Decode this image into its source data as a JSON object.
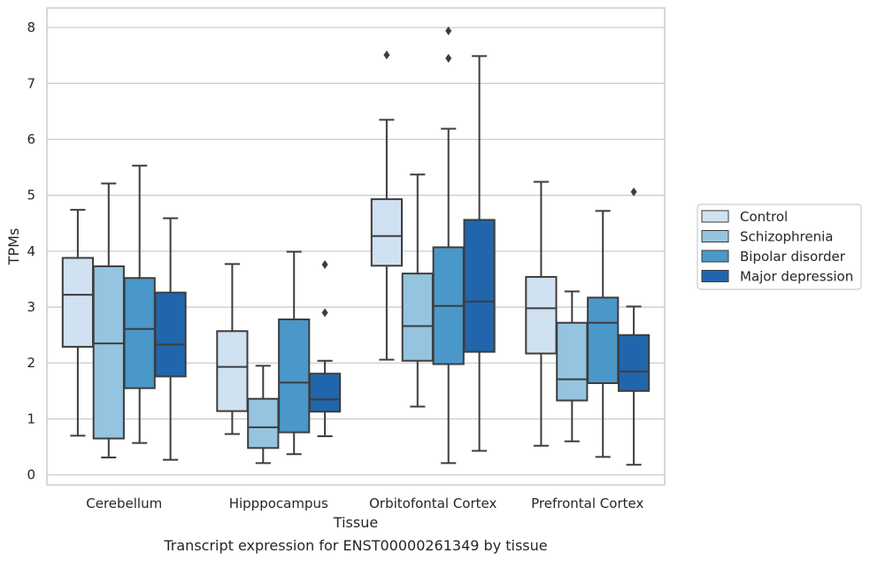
{
  "caption": "Transcript expression for ENST00000261349 by tissue",
  "chart_data": {
    "type": "boxplot",
    "xlabel": "Tissue",
    "ylabel": "TPMs",
    "ylim": [
      -0.18,
      8.35
    ],
    "yticks": [
      0,
      1,
      2,
      3,
      4,
      5,
      6,
      7,
      8
    ],
    "grid": "horizontal",
    "legend_position": "right",
    "categories": [
      "Cerebellum",
      "Hipppocampus",
      "Orbitofontal Cortex",
      "Prefrontal Cortex"
    ],
    "series": [
      {
        "name": "Control",
        "color": "#d0e1f2",
        "boxes": [
          {
            "min": 0.7,
            "q1": 2.29,
            "median": 3.22,
            "q3": 3.88,
            "max": 4.74,
            "outliers": []
          },
          {
            "min": 0.73,
            "q1": 1.14,
            "median": 1.93,
            "q3": 2.57,
            "max": 3.77,
            "outliers": []
          },
          {
            "min": 2.06,
            "q1": 3.74,
            "median": 4.27,
            "q3": 4.93,
            "max": 6.35,
            "outliers": [
              7.51
            ]
          },
          {
            "min": 0.52,
            "q1": 2.17,
            "median": 2.98,
            "q3": 3.54,
            "max": 5.24,
            "outliers": []
          }
        ]
      },
      {
        "name": "Schizophrenia",
        "color": "#94c4df",
        "boxes": [
          {
            "min": 0.31,
            "q1": 0.65,
            "median": 2.35,
            "q3": 3.73,
            "max": 5.21,
            "outliers": []
          },
          {
            "min": 0.21,
            "q1": 0.48,
            "median": 0.85,
            "q3": 1.36,
            "max": 1.95,
            "outliers": []
          },
          {
            "min": 1.22,
            "q1": 2.04,
            "median": 2.66,
            "q3": 3.6,
            "max": 5.37,
            "outliers": []
          },
          {
            "min": 0.6,
            "q1": 1.33,
            "median": 1.71,
            "q3": 2.72,
            "max": 3.28,
            "outliers": []
          }
        ]
      },
      {
        "name": "Bipolar disorder",
        "color": "#4a98c9",
        "boxes": [
          {
            "min": 0.57,
            "q1": 1.55,
            "median": 2.61,
            "q3": 3.52,
            "max": 5.53,
            "outliers": []
          },
          {
            "min": 0.37,
            "q1": 0.76,
            "median": 1.65,
            "q3": 2.78,
            "max": 3.99,
            "outliers": []
          },
          {
            "min": 0.21,
            "q1": 1.98,
            "median": 3.02,
            "q3": 4.07,
            "max": 6.19,
            "outliers": [
              7.45,
              7.94
            ]
          },
          {
            "min": 0.32,
            "q1": 1.64,
            "median": 2.72,
            "q3": 3.17,
            "max": 4.72,
            "outliers": []
          }
        ]
      },
      {
        "name": "Major depression",
        "color": "#2166ac",
        "boxes": [
          {
            "min": 0.27,
            "q1": 1.76,
            "median": 2.33,
            "q3": 3.26,
            "max": 4.59,
            "outliers": []
          },
          {
            "min": 0.69,
            "q1": 1.13,
            "median": 1.35,
            "q3": 1.81,
            "max": 2.04,
            "outliers": [
              2.9,
              3.76
            ]
          },
          {
            "min": 0.43,
            "q1": 2.2,
            "median": 3.1,
            "q3": 4.56,
            "max": 7.49,
            "outliers": []
          },
          {
            "min": 0.18,
            "q1": 1.5,
            "median": 1.85,
            "q3": 2.5,
            "max": 3.01,
            "outliers": [
              5.06
            ]
          }
        ]
      }
    ]
  }
}
